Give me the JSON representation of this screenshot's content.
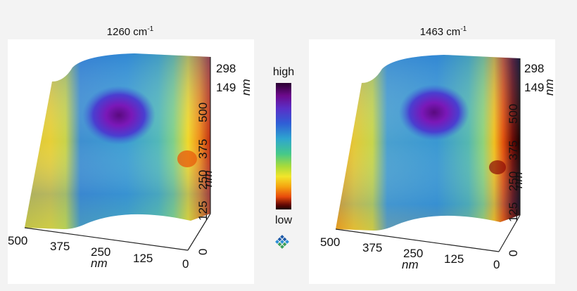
{
  "panels": [
    {
      "title": "1260 cm",
      "title_sup": "-1",
      "x_ticks": [
        "500",
        "375",
        "250",
        "125",
        "0"
      ],
      "x_unit": "nm",
      "y_ticks": [
        "0",
        "125",
        "250",
        "375",
        "500"
      ],
      "y_unit": "nm",
      "z_ticks": [
        "298",
        "149"
      ],
      "z_unit": "nm"
    },
    {
      "title": "1463 cm",
      "title_sup": "-1",
      "x_ticks": [
        "500",
        "375",
        "250",
        "125",
        "0"
      ],
      "x_unit": "nm",
      "y_ticks": [
        "0",
        "125",
        "250",
        "375",
        "500"
      ],
      "y_unit": "nm",
      "z_ticks": [
        "298",
        "149"
      ],
      "z_unit": "nm"
    }
  ],
  "colorbar": {
    "high_label": "high",
    "low_label": "low"
  },
  "logo_icon": "diamond-grid-logo-icon"
}
